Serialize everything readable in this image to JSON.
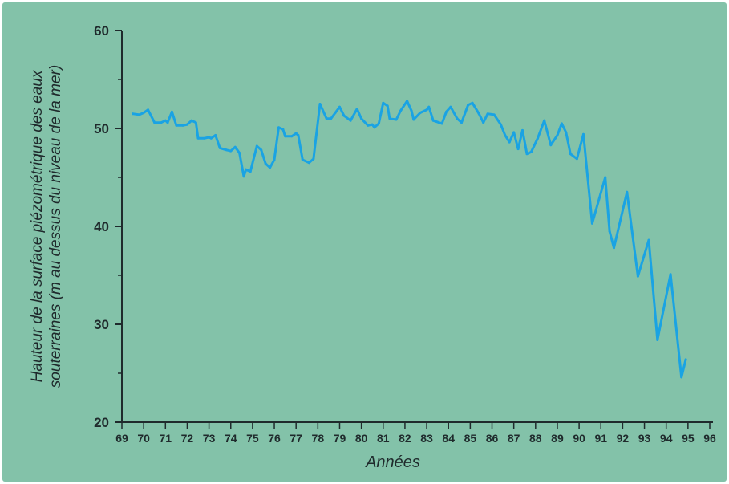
{
  "chart_data": {
    "type": "line",
    "title": "",
    "xlabel": "Années",
    "ylabel_lines": [
      "Hauteur de la surface piézométrique des eaux",
      "souterraines (m au dessus du niveau de la mer)"
    ],
    "xlim": [
      69,
      96
    ],
    "ylim": [
      20,
      60
    ],
    "x_ticks": [
      "69",
      "70",
      "71",
      "72",
      "73",
      "74",
      "75",
      "76",
      "77",
      "78",
      "79",
      "80",
      "81",
      "82",
      "83",
      "84",
      "85",
      "86",
      "87",
      "88",
      "89",
      "90",
      "91",
      "92",
      "93",
      "94",
      "95",
      "96"
    ],
    "y_ticks": [
      "20",
      "30",
      "40",
      "50",
      "60"
    ],
    "grid": false,
    "line_color": "#1aa3e3",
    "axis_color": "#1f2a2c",
    "series": [
      {
        "name": "",
        "points": [
          [
            69.5,
            51.5
          ],
          [
            69.8,
            51.4
          ],
          [
            70.0,
            51.6
          ],
          [
            70.2,
            51.9
          ],
          [
            70.5,
            50.6
          ],
          [
            70.8,
            50.6
          ],
          [
            71.0,
            50.8
          ],
          [
            71.1,
            50.6
          ],
          [
            71.3,
            51.7
          ],
          [
            71.5,
            50.3
          ],
          [
            71.8,
            50.3
          ],
          [
            72.0,
            50.4
          ],
          [
            72.2,
            50.8
          ],
          [
            72.4,
            50.6
          ],
          [
            72.5,
            49.0
          ],
          [
            72.8,
            49.0
          ],
          [
            73.0,
            49.1
          ],
          [
            73.1,
            49.0
          ],
          [
            73.3,
            49.3
          ],
          [
            73.5,
            48.0
          ],
          [
            73.8,
            47.8
          ],
          [
            74.0,
            47.7
          ],
          [
            74.2,
            48.1
          ],
          [
            74.4,
            47.5
          ],
          [
            74.6,
            45.1
          ],
          [
            74.7,
            45.8
          ],
          [
            74.9,
            45.6
          ],
          [
            75.2,
            48.2
          ],
          [
            75.4,
            47.8
          ],
          [
            75.6,
            46.4
          ],
          [
            75.8,
            46.0
          ],
          [
            76.0,
            46.8
          ],
          [
            76.2,
            50.1
          ],
          [
            76.4,
            49.9
          ],
          [
            76.5,
            49.2
          ],
          [
            76.8,
            49.2
          ],
          [
            77.0,
            49.5
          ],
          [
            77.1,
            49.3
          ],
          [
            77.3,
            46.8
          ],
          [
            77.6,
            46.5
          ],
          [
            77.8,
            46.9
          ],
          [
            78.1,
            52.5
          ],
          [
            78.4,
            51.0
          ],
          [
            78.6,
            51.0
          ],
          [
            78.8,
            51.6
          ],
          [
            79.0,
            52.2
          ],
          [
            79.2,
            51.3
          ],
          [
            79.5,
            50.8
          ],
          [
            79.8,
            52.0
          ],
          [
            80.0,
            51.0
          ],
          [
            80.3,
            50.3
          ],
          [
            80.5,
            50.4
          ],
          [
            80.6,
            50.1
          ],
          [
            80.8,
            50.5
          ],
          [
            81.0,
            52.6
          ],
          [
            81.2,
            52.3
          ],
          [
            81.3,
            51.0
          ],
          [
            81.6,
            50.9
          ],
          [
            81.8,
            51.8
          ],
          [
            82.1,
            52.8
          ],
          [
            82.3,
            51.8
          ],
          [
            82.4,
            50.9
          ],
          [
            82.7,
            51.6
          ],
          [
            83.0,
            51.9
          ],
          [
            83.1,
            52.2
          ],
          [
            83.3,
            50.8
          ],
          [
            83.7,
            50.5
          ],
          [
            83.9,
            51.7
          ],
          [
            84.1,
            52.2
          ],
          [
            84.4,
            51.0
          ],
          [
            84.6,
            50.6
          ],
          [
            84.9,
            52.4
          ],
          [
            85.1,
            52.6
          ],
          [
            85.4,
            51.5
          ],
          [
            85.6,
            50.6
          ],
          [
            85.8,
            51.5
          ],
          [
            86.1,
            51.4
          ],
          [
            86.4,
            50.4
          ],
          [
            86.6,
            49.3
          ],
          [
            86.8,
            48.6
          ],
          [
            87.0,
            49.6
          ],
          [
            87.2,
            47.9
          ],
          [
            87.4,
            49.8
          ],
          [
            87.6,
            47.4
          ],
          [
            87.8,
            47.6
          ],
          [
            88.1,
            49.0
          ],
          [
            88.4,
            50.8
          ],
          [
            88.7,
            48.3
          ],
          [
            89.0,
            49.3
          ],
          [
            89.2,
            50.5
          ],
          [
            89.4,
            49.6
          ],
          [
            89.6,
            47.4
          ],
          [
            89.9,
            46.9
          ],
          [
            90.2,
            49.4
          ],
          [
            90.6,
            40.3
          ],
          [
            91.2,
            45.0
          ],
          [
            91.4,
            39.5
          ],
          [
            91.6,
            37.8
          ],
          [
            92.2,
            43.5
          ],
          [
            92.7,
            34.9
          ],
          [
            93.2,
            38.6
          ],
          [
            93.6,
            28.4
          ],
          [
            94.2,
            35.1
          ],
          [
            94.7,
            24.6
          ],
          [
            94.9,
            26.4
          ]
        ]
      }
    ]
  }
}
